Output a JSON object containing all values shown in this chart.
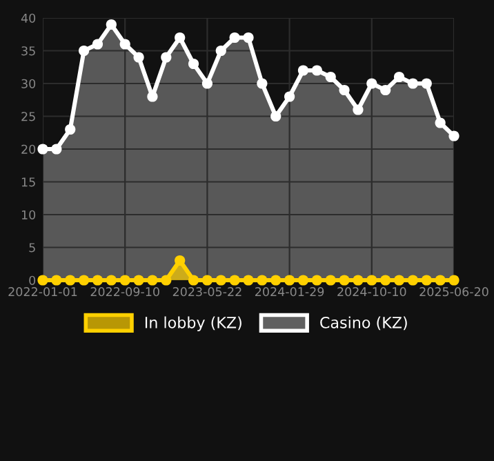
{
  "chart_data": {
    "type": "area",
    "categories": [
      "2022-01-01",
      null,
      null,
      null,
      null,
      null,
      "2022-09-10",
      null,
      null,
      null,
      null,
      null,
      "2023-05-22",
      null,
      null,
      null,
      null,
      null,
      "2024-01-29",
      null,
      null,
      null,
      null,
      null,
      "2024-10-10",
      null,
      null,
      null,
      null,
      null,
      "2025-06-20"
    ],
    "series": [
      {
        "name": "In lobby (KZ)",
        "color": "#ffd000",
        "values": [
          0,
          0,
          0,
          0,
          0,
          0,
          0,
          0,
          0,
          0,
          3,
          0,
          0,
          0,
          0,
          0,
          0,
          0,
          0,
          0,
          0,
          0,
          0,
          0,
          0,
          0,
          0,
          0,
          0,
          0,
          0
        ]
      },
      {
        "name": "Casino (KZ)",
        "color": "#ffffff",
        "values": [
          20,
          20,
          23,
          35,
          36,
          39,
          36,
          34,
          28,
          34,
          37,
          33,
          30,
          35,
          37,
          37,
          30,
          25,
          28,
          32,
          32,
          31,
          29,
          26,
          30,
          29,
          31,
          30,
          30,
          24,
          22
        ]
      }
    ],
    "ylim": [
      0,
      40
    ],
    "yticks": [
      0,
      5,
      10,
      15,
      20,
      25,
      30,
      35,
      40
    ],
    "grid": true,
    "legend": "bottom",
    "marker": "circle",
    "line_style": "solid"
  }
}
